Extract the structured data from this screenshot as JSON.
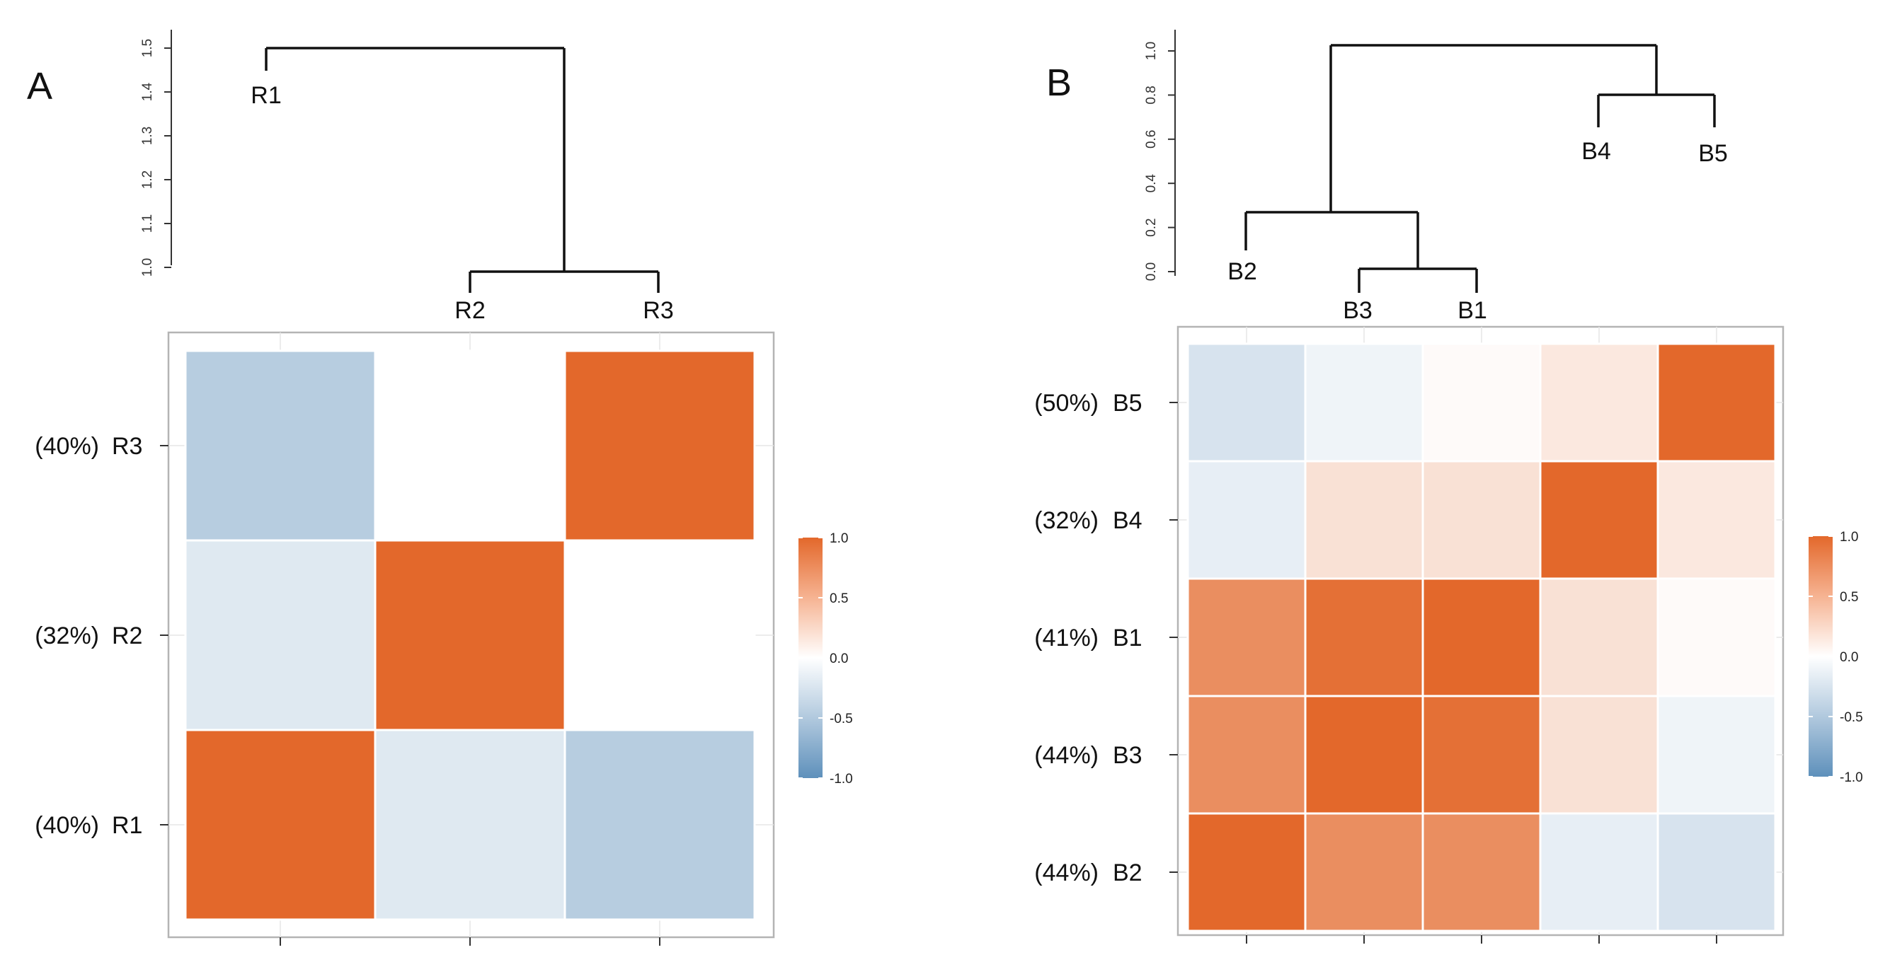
{
  "chart_data": [
    {
      "panel_label": "A",
      "type": "heatmap",
      "description_key": "correlation heatmap with hierarchical clustering dendrogram",
      "order": [
        "R1",
        "R2",
        "R3"
      ],
      "rows": [
        {
          "pct": "(40%)",
          "name": "R3"
        },
        {
          "pct": "(32%)",
          "name": "R2"
        },
        {
          "pct": "(40%)",
          "name": "R1"
        }
      ],
      "matrix": {
        "R1": {
          "R1": 1.0,
          "R2": -0.2,
          "R3": -0.45
        },
        "R2": {
          "R1": -0.2,
          "R2": 1.0,
          "R3": 0.0
        },
        "R3": {
          "R1": -0.45,
          "R2": 0.0,
          "R3": 1.0
        }
      },
      "dendrogram": {
        "ylim": [
          1.0,
          1.5
        ],
        "ticks": [
          "1.0",
          "1.1",
          "1.2",
          "1.3",
          "1.4",
          "1.5"
        ],
        "leaves": [
          "R1",
          "R2",
          "R3"
        ],
        "merges": [
          {
            "a": "R2",
            "b": "R3",
            "height": 1.0
          },
          {
            "a": "R1",
            "b": "R2+R3",
            "height": 1.5
          }
        ]
      },
      "legend": {
        "ticks": [
          "1.0",
          "0.5",
          "0.0",
          "-0.5",
          "-1.0"
        ],
        "min": -1.0,
        "max": 1.0
      }
    },
    {
      "panel_label": "B",
      "type": "heatmap",
      "description_key": "correlation heatmap with hierarchical clustering dendrogram",
      "order": [
        "B2",
        "B3",
        "B1",
        "B4",
        "B5"
      ],
      "rows": [
        {
          "pct": "(50%)",
          "name": "B5"
        },
        {
          "pct": "(32%)",
          "name": "B4"
        },
        {
          "pct": "(41%)",
          "name": "B1"
        },
        {
          "pct": "(44%)",
          "name": "B3"
        },
        {
          "pct": "(44%)",
          "name": "B2"
        }
      ],
      "matrix": {
        "B2": {
          "B2": 1.0,
          "B3": 0.75,
          "B1": 0.75,
          "B4": -0.15,
          "B5": -0.25
        },
        "B3": {
          "B2": 0.75,
          "B3": 1.0,
          "B1": 0.95,
          "B4": 0.2,
          "B5": -0.1
        },
        "B1": {
          "B2": 0.75,
          "B3": 0.95,
          "B1": 1.0,
          "B4": 0.2,
          "B5": 0.03
        },
        "B4": {
          "B2": -0.15,
          "B3": 0.2,
          "B1": 0.2,
          "B4": 1.0,
          "B5": 0.15
        },
        "B5": {
          "B2": -0.25,
          "B3": -0.1,
          "B1": 0.03,
          "B4": 0.15,
          "B5": 1.0
        }
      },
      "dendrogram": {
        "ylim": [
          0.0,
          1.0
        ],
        "ticks": [
          "0.0",
          "0.2",
          "0.4",
          "0.6",
          "0.8",
          "1.0"
        ],
        "leaves": [
          "B2",
          "B3",
          "B1",
          "B4",
          "B5"
        ],
        "merges": [
          {
            "a": "B3",
            "b": "B1",
            "height": 0.0
          },
          {
            "a": "B2",
            "b": "B3+B1",
            "height": 0.26
          },
          {
            "a": "B4",
            "b": "B5",
            "height": 0.8
          },
          {
            "a": "B2+B3+B1",
            "b": "B4+B5",
            "height": 1.05
          }
        ]
      },
      "legend": {
        "ticks": [
          "1.0",
          "0.5",
          "0.0",
          "-0.5",
          "-1.0"
        ],
        "min": -1.0,
        "max": 1.0
      }
    }
  ],
  "colors": {
    "positive": "#e3682b",
    "negative": "#5e90bb",
    "neutral": "#ffffff"
  }
}
